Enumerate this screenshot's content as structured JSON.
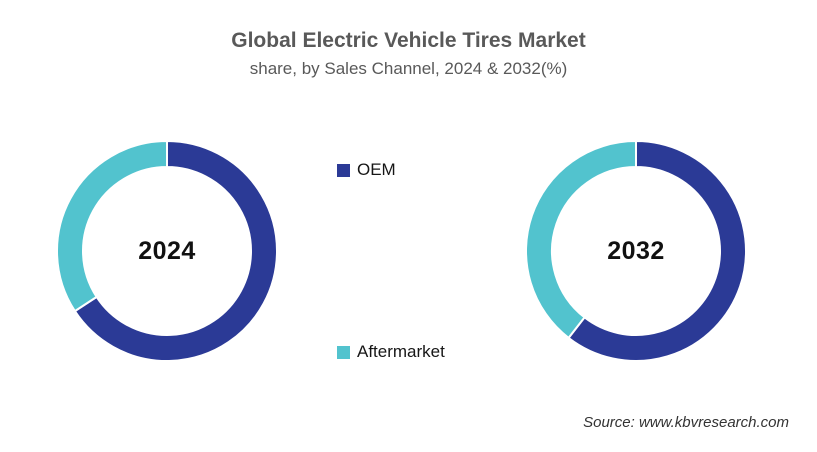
{
  "header": {
    "title": "Global Electric Vehicle Tires Market",
    "subtitle": "share, by Sales Channel, 2024 & 2032(%)"
  },
  "legend": {
    "position": "center-between-charts",
    "items": [
      {
        "label": "OEM",
        "color": "#2b3a96"
      },
      {
        "label": "Aftermarket",
        "color": "#52c3ce"
      }
    ]
  },
  "chart_data": [
    {
      "type": "pie",
      "subtype": "donut",
      "center_label": "2024",
      "categories": [
        "OEM",
        "Aftermarket"
      ],
      "values": [
        65.8,
        34.2
      ],
      "unit": "% share",
      "colors": [
        "#2b3a96",
        "#52c3ce"
      ],
      "start_angle_deg": 0,
      "direction": "clockwise"
    },
    {
      "type": "pie",
      "subtype": "donut",
      "center_label": "2032",
      "categories": [
        "OEM",
        "Aftermarket"
      ],
      "values": [
        60.5,
        39.5
      ],
      "unit": "% share",
      "colors": [
        "#2b3a96",
        "#52c3ce"
      ],
      "start_angle_deg": 0,
      "direction": "clockwise"
    }
  ],
  "footer": {
    "source": "Source: www.kbvresearch.com"
  }
}
